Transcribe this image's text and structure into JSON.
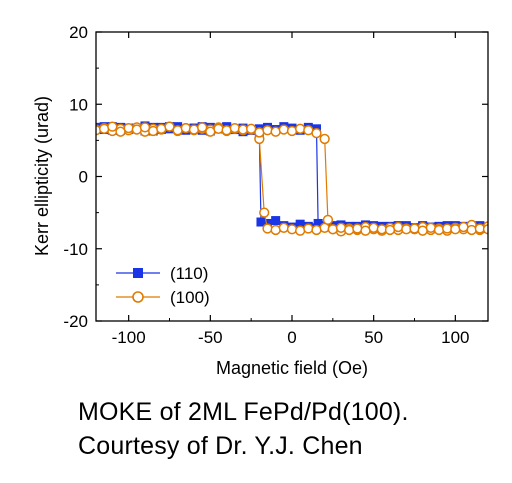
{
  "chart_data": {
    "type": "scatter",
    "xlabel": "Magnetic field (Oe)",
    "ylabel": "Kerr ellipticity (urad)",
    "xlim": [
      -120,
      120
    ],
    "ylim": [
      -20,
      20
    ],
    "xticks": [
      -100,
      -50,
      0,
      50,
      100
    ],
    "yticks": [
      -20,
      -10,
      0,
      10,
      20
    ],
    "legend_position": "bottom-left",
    "series": [
      {
        "name": "(110)",
        "color": "#1a35e6",
        "marker": "square-filled",
        "line": "solid",
        "branches": [
          {
            "x": [
              -120,
              -115,
              -110,
              -105,
              -100,
              -95,
              -90,
              -85,
              -80,
              -75,
              -70,
              -65,
              -60,
              -55,
              -50,
              -45,
              -40,
              -35,
              -30,
              -25,
              -20,
              -19,
              -15,
              -10,
              -5,
              0,
              5,
              10,
              15,
              20,
              25,
              30,
              35,
              40,
              45,
              50,
              55,
              60,
              65,
              70,
              75,
              80,
              85,
              90,
              95,
              100,
              105,
              110,
              115,
              120
            ],
            "y": [
              6.8,
              6.5,
              6.9,
              6.4,
              6.7,
              6.6,
              6.3,
              6.8,
              6.5,
              6.9,
              6.6,
              6.4,
              6.7,
              6.9,
              6.3,
              6.6,
              6.8,
              6.5,
              6.2,
              6.4,
              6.0,
              -6.3,
              -6.5,
              -6.1,
              -6.8,
              -7.0,
              -6.6,
              -6.9,
              -7.1,
              -7.0,
              -6.8,
              -7.2,
              -6.9,
              -7.0,
              -6.7,
              -7.1,
              -6.9,
              -7.2,
              -6.8,
              -7.0,
              -7.1,
              -6.8,
              -7.0,
              -6.9,
              -7.2,
              -6.8,
              -7.0,
              -7.1,
              -6.9,
              -7.2
            ]
          },
          {
            "x": [
              -120,
              -115,
              -110,
              -105,
              -100,
              -95,
              -90,
              -85,
              -80,
              -75,
              -70,
              -65,
              -60,
              -55,
              -50,
              -45,
              -40,
              -35,
              -30,
              -25,
              -20,
              -15,
              -10,
              -5,
              0,
              5,
              10,
              15,
              16,
              20,
              25,
              30,
              35,
              40,
              45,
              50,
              55,
              60,
              65,
              70,
              75,
              80,
              85,
              90,
              95,
              100,
              105,
              110,
              115,
              120
            ],
            "y": [
              6.6,
              6.9,
              6.4,
              6.8,
              6.5,
              6.7,
              7.0,
              6.3,
              6.8,
              6.6,
              6.9,
              6.5,
              6.7,
              6.4,
              6.8,
              6.6,
              6.9,
              6.5,
              6.7,
              6.4,
              6.6,
              6.8,
              6.5,
              6.9,
              6.7,
              6.4,
              6.8,
              6.6,
              -6.5,
              -6.8,
              -7.0,
              -6.7,
              -7.1,
              -6.9,
              -7.0,
              -6.8,
              -7.2,
              -6.9,
              -7.0,
              -6.8,
              -7.1,
              -6.9,
              -7.0,
              -7.2,
              -6.8,
              -7.0,
              -6.9,
              -7.1,
              -6.8,
              -7.0
            ]
          }
        ]
      },
      {
        "name": "(100)",
        "color": "#e07b00",
        "marker": "circle-open",
        "line": "solid",
        "branches": [
          {
            "x": [
              -120,
              -115,
              -110,
              -105,
              -100,
              -95,
              -90,
              -85,
              -80,
              -75,
              -70,
              -65,
              -60,
              -55,
              -50,
              -45,
              -40,
              -35,
              -30,
              -25,
              -20,
              -17,
              -15,
              -10,
              -5,
              0,
              5,
              10,
              15,
              20,
              25,
              30,
              35,
              40,
              45,
              50,
              55,
              60,
              65,
              70,
              75,
              80,
              85,
              90,
              95,
              100,
              105,
              110,
              115,
              120
            ],
            "y": [
              6.5,
              6.7,
              6.3,
              6.6,
              6.4,
              6.8,
              6.2,
              6.6,
              6.5,
              6.9,
              6.3,
              6.7,
              6.4,
              6.6,
              6.5,
              6.8,
              6.3,
              6.6,
              6.4,
              6.5,
              5.2,
              -5.0,
              -7.2,
              -7.4,
              -7.1,
              -7.3,
              -7.5,
              -7.2,
              -7.4,
              -7.1,
              -7.3,
              -7.6,
              -7.2,
              -7.4,
              -7.0,
              -7.3,
              -7.5,
              -7.1,
              -7.4,
              -7.2,
              -7.3,
              -7.0,
              -7.4,
              -7.2,
              -7.5,
              -7.1,
              -7.3,
              -6.7,
              -7.4,
              -6.9
            ]
          },
          {
            "x": [
              -120,
              -115,
              -110,
              -105,
              -100,
              -95,
              -90,
              -85,
              -80,
              -75,
              -70,
              -65,
              -60,
              -55,
              -50,
              -45,
              -40,
              -35,
              -30,
              -25,
              -20,
              -15,
              -10,
              -5,
              0,
              5,
              10,
              15,
              20,
              22,
              25,
              30,
              35,
              40,
              45,
              50,
              55,
              60,
              65,
              70,
              75,
              80,
              85,
              90,
              95,
              100,
              105,
              110,
              115,
              120
            ],
            "y": [
              6.4,
              6.6,
              6.9,
              6.2,
              6.7,
              6.5,
              6.8,
              6.3,
              6.6,
              6.9,
              6.4,
              6.7,
              6.5,
              6.8,
              6.2,
              6.6,
              6.4,
              6.7,
              6.5,
              6.6,
              6.1,
              6.4,
              6.2,
              6.5,
              6.3,
              6.6,
              6.4,
              6.0,
              5.2,
              -6.0,
              -7.3,
              -7.1,
              -7.4,
              -7.2,
              -7.5,
              -7.1,
              -7.3,
              -7.4,
              -7.0,
              -7.3,
              -7.2,
              -7.5,
              -7.1,
              -7.4,
              -7.2,
              -7.3,
              -7.0,
              -7.4,
              -7.2,
              -7.3
            ]
          }
        ]
      }
    ]
  },
  "caption": {
    "line1": "MOKE of 2ML FePd/Pd(100).",
    "line2": "Courtesy of Dr. Y.J. Chen"
  }
}
